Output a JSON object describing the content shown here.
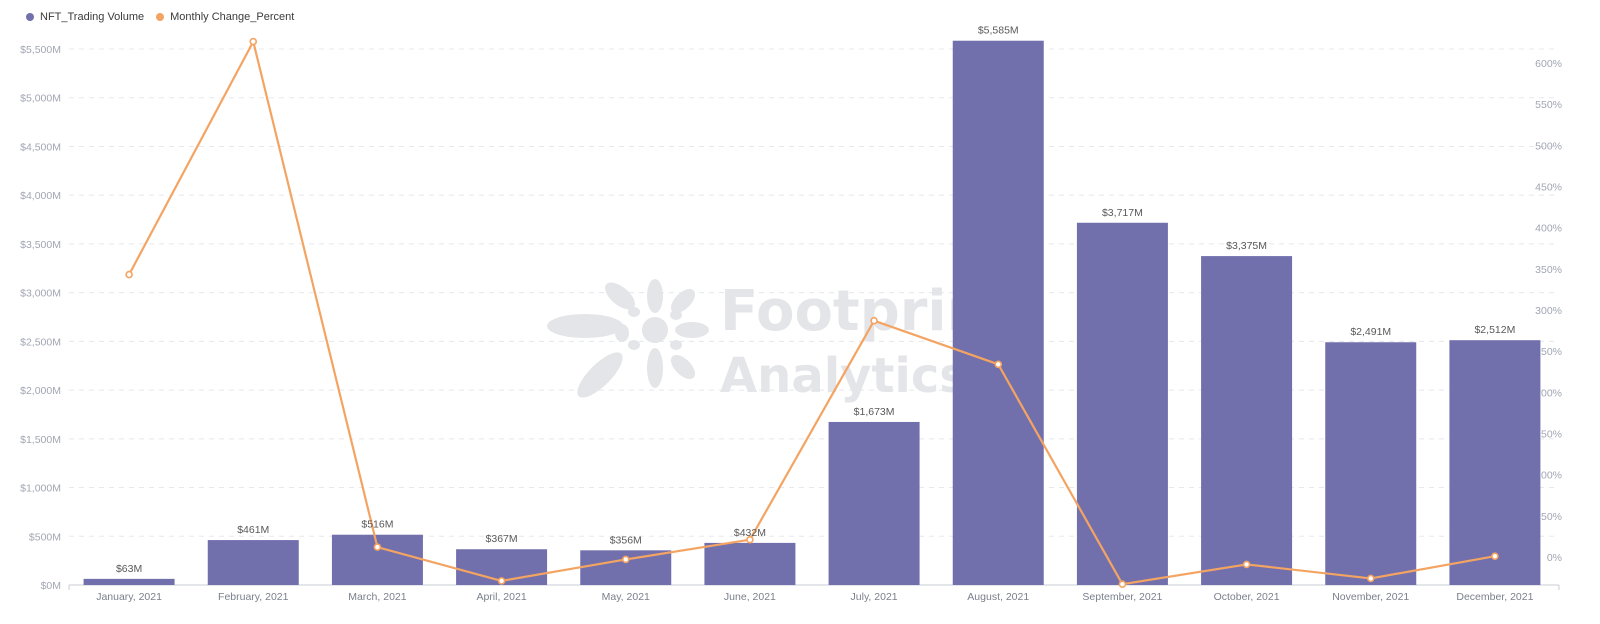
{
  "legend": {
    "items": [
      {
        "label": "NFT_Trading Volume",
        "color": "#7170ac"
      },
      {
        "label": "Monthly Change_Percent",
        "color": "#f4a462"
      }
    ]
  },
  "watermark": {
    "line1": "Footprint",
    "line2": "Analytics"
  },
  "chart_data": {
    "type": "bar+line",
    "title": "",
    "xlabel": "",
    "ylabel": "",
    "categories": [
      "January, 2021",
      "February, 2021",
      "March, 2021",
      "April, 2021",
      "May, 2021",
      "June, 2021",
      "July, 2021",
      "August, 2021",
      "September, 2021",
      "October, 2021",
      "November, 2021",
      "December, 2021"
    ],
    "series": [
      {
        "name": "NFT_Trading Volume",
        "type": "bar",
        "axis": "left",
        "color": "#7170ac",
        "unit": "$M",
        "values": [
          63,
          461,
          516,
          367,
          356,
          432,
          1673,
          5585,
          3717,
          3375,
          2491,
          2512
        ],
        "labels": [
          "$63M",
          "$461M",
          "$516M",
          "$367M",
          "$356M",
          "$432M",
          "$1,673M",
          "$5,585M",
          "$3,717M",
          "$3,375M",
          "$2,491M",
          "$2,512M"
        ]
      },
      {
        "name": "Monthly Change_Percent",
        "type": "line",
        "axis": "right",
        "color": "#f4a462",
        "unit": "%",
        "values": [
          343,
          626,
          12,
          -29,
          -3,
          21,
          287,
          234,
          -33,
          -9,
          -26,
          1
        ]
      }
    ],
    "left_axis": {
      "ylim": [
        0,
        5500
      ],
      "ticks": [
        0,
        500,
        1000,
        1500,
        2000,
        2500,
        3000,
        3500,
        4000,
        4500,
        5000,
        5500
      ],
      "tick_labels": [
        "$0M",
        "$500M",
        "$1,000M",
        "$1,500M",
        "$2,000M",
        "$2,500M",
        "$3,000M",
        "$3,500M",
        "$4,000M",
        "$4,500M",
        "$5,000M",
        "$5,500M"
      ]
    },
    "right_axis": {
      "ylim": [
        -35,
        650
      ],
      "ticks": [
        0,
        50,
        100,
        150,
        200,
        250,
        300,
        350,
        400,
        450,
        500,
        550,
        600
      ],
      "tick_labels": [
        "0%",
        "50%",
        "100%",
        "150%",
        "200%",
        "250%",
        "300%",
        "350%",
        "400%",
        "450%",
        "500%",
        "550%",
        "600%"
      ]
    },
    "grid": true,
    "legend_position": "top-left"
  }
}
